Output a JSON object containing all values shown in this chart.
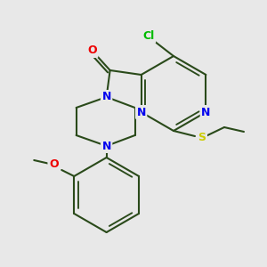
{
  "background_color": "#e8e8e8",
  "bond_color": "#2a4a1a",
  "bond_width": 1.5,
  "atom_colors": {
    "N": "#0000ee",
    "O": "#ee0000",
    "S": "#cccc00",
    "Cl": "#00bb00"
  },
  "figsize": [
    3.0,
    3.0
  ],
  "dpi": 100,
  "xlim": [
    0,
    300
  ],
  "ylim": [
    0,
    300
  ]
}
